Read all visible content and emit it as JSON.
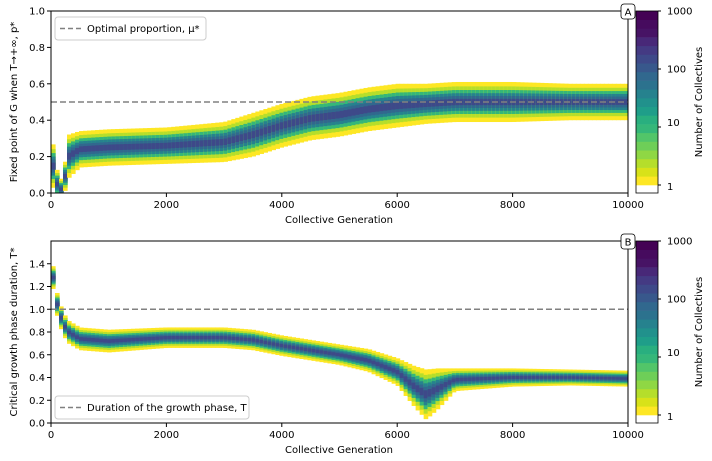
{
  "chart_data": [
    {
      "type": "heatmap",
      "panel_label": "A",
      "xlabel": "Collective Generation",
      "ylabel": "Fixed point of G when T→+∞, p*",
      "xlim": [
        0,
        10000
      ],
      "ylim": [
        0,
        1.0
      ],
      "xticks": [
        0,
        2000,
        4000,
        6000,
        8000,
        10000
      ],
      "yticks": [
        0.0,
        0.2,
        0.4,
        0.6,
        0.8,
        1.0
      ],
      "ytick_labels": [
        "0.0",
        "0.2",
        "0.4",
        "0.6",
        "0.8",
        "1.0"
      ],
      "reference_line": {
        "y": 0.5,
        "label": "Optimal proportion, μ*",
        "style": "dashed",
        "color": "#808080"
      },
      "legend_position": "upper-left",
      "ridge": {
        "x": [
          0,
          100,
          200,
          300,
          500,
          1000,
          2000,
          3000,
          3500,
          4000,
          4500,
          5000,
          5500,
          6000,
          6500,
          7000,
          8000,
          9000,
          10000
        ],
        "center": [
          0.2,
          0.05,
          0.01,
          0.2,
          0.24,
          0.25,
          0.26,
          0.28,
          0.32,
          0.37,
          0.41,
          0.43,
          0.46,
          0.48,
          0.49,
          0.5,
          0.5,
          0.5,
          0.5
        ],
        "spread": [
          0.14,
          0.08,
          0.05,
          0.12,
          0.1,
          0.1,
          0.1,
          0.11,
          0.12,
          0.12,
          0.12,
          0.12,
          0.12,
          0.12,
          0.11,
          0.11,
          0.11,
          0.1,
          0.1
        ]
      },
      "grid": false
    },
    {
      "type": "heatmap",
      "panel_label": "B",
      "xlabel": "Collective Generation",
      "ylabel": "Critical growth phase duration, T*",
      "xlim": [
        0,
        10000
      ],
      "ylim": [
        0,
        1.6
      ],
      "xticks": [
        0,
        2000,
        4000,
        6000,
        8000,
        10000
      ],
      "yticks": [
        0.0,
        0.2,
        0.4,
        0.6,
        0.8,
        1.0,
        1.2,
        1.4
      ],
      "ytick_labels": [
        "0.0",
        "0.2",
        "0.4",
        "0.6",
        "0.8",
        "1.0",
        "1.2",
        "1.4"
      ],
      "reference_line": {
        "y": 1.0,
        "label": "Duration of the growth phase, T",
        "style": "dashed",
        "color": "#808080"
      },
      "legend_position": "lower-left",
      "ridge": {
        "x": [
          0,
          100,
          200,
          300,
          500,
          1000,
          2000,
          3000,
          3500,
          4000,
          4500,
          5000,
          5500,
          6000,
          6300,
          6500,
          6700,
          7000,
          8000,
          9000,
          10000
        ],
        "center": [
          1.4,
          1.05,
          0.88,
          0.8,
          0.74,
          0.72,
          0.75,
          0.75,
          0.73,
          0.68,
          0.64,
          0.6,
          0.55,
          0.45,
          0.32,
          0.25,
          0.3,
          0.38,
          0.4,
          0.4,
          0.39
        ],
        "spread": [
          0.1,
          0.1,
          0.1,
          0.1,
          0.1,
          0.1,
          0.09,
          0.09,
          0.09,
          0.09,
          0.09,
          0.09,
          0.1,
          0.12,
          0.18,
          0.22,
          0.18,
          0.1,
          0.08,
          0.07,
          0.07
        ]
      },
      "grid": false
    }
  ],
  "colorbar": {
    "label": "Number of Collectives",
    "scale": "log",
    "ticks": [
      "1000",
      "100",
      "10",
      "1"
    ],
    "tick_values": [
      1000,
      100,
      10,
      1
    ],
    "colormap": [
      "#fde725",
      "#b5de2b",
      "#6ece58",
      "#35b779",
      "#1f9e89",
      "#26828e",
      "#31688e",
      "#3e4989",
      "#482878",
      "#440154"
    ]
  }
}
